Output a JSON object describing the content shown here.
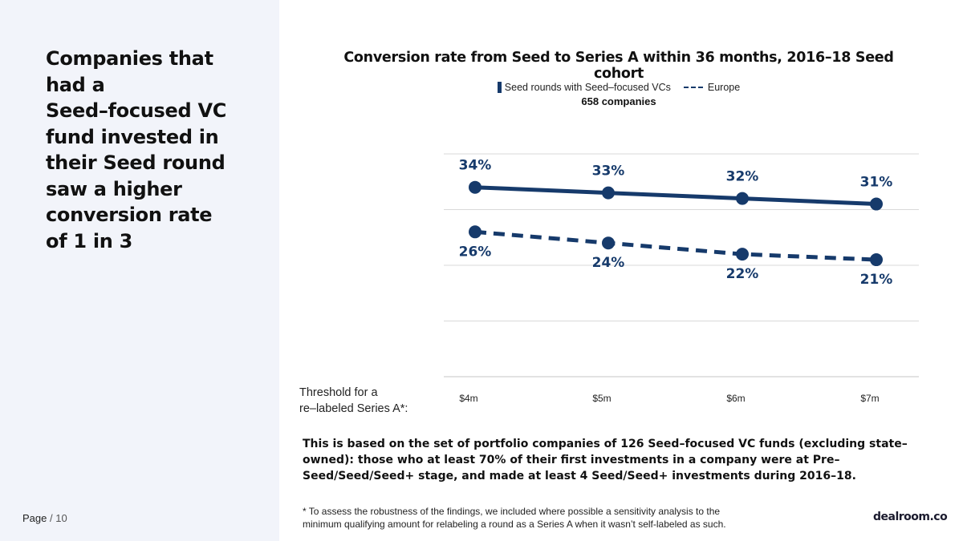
{
  "headline": {
    "lines": [
      "Companies that",
      "had a",
      "Seed–focused VC",
      "fund invested in",
      "their Seed round",
      "saw a higher",
      "conversion rate",
      "of 1 in 3"
    ]
  },
  "page": {
    "label": "Page",
    "separator": "/",
    "number": "10"
  },
  "brand": {
    "name": "dealroom.co"
  },
  "axis_caption": {
    "line1": "Threshold for a",
    "line2": "re–labeled Series A*:"
  },
  "note": "This is based on the set of portfolio companies of 126 Seed–focused VC funds (excluding state–owned): those who at least 70% of their first investments in a company were at Pre–Seed/Seed/Seed+ stage, and made at least 4 Seed/Seed+ investments during 2016–18.",
  "footnote": {
    "line1": "* To assess the robustness of the findings, we included where possible a sensitivity analysis to the",
    "line2": "minimum qualifying amount for relabeling a round as a Series A when it wasn’t self-labeled as such."
  },
  "colors": {
    "series": "#163a6b",
    "grid": "#d9d9d9",
    "left_panel": "#f2f4fa"
  },
  "chart_data": {
    "type": "line",
    "title": "Conversion rate from Seed to Series A within 36 months, 2016–18 Seed cohort",
    "legend_subtitle": "658 companies",
    "categories": [
      "$4m",
      "$5m",
      "$6m",
      "$7m"
    ],
    "series": [
      {
        "name": "Seed rounds with Seed–focused VCs",
        "style": "solid",
        "values": [
          34,
          33,
          32,
          31
        ],
        "labels": [
          "34%",
          "33%",
          "32%",
          "31%"
        ]
      },
      {
        "name": "Europe",
        "style": "dashed",
        "values": [
          26,
          24,
          22,
          21
        ],
        "labels": [
          "26%",
          "24%",
          "22%",
          "21%"
        ]
      }
    ],
    "ylim": [
      0,
      40
    ],
    "grid": true,
    "legend_position": "top-center"
  }
}
